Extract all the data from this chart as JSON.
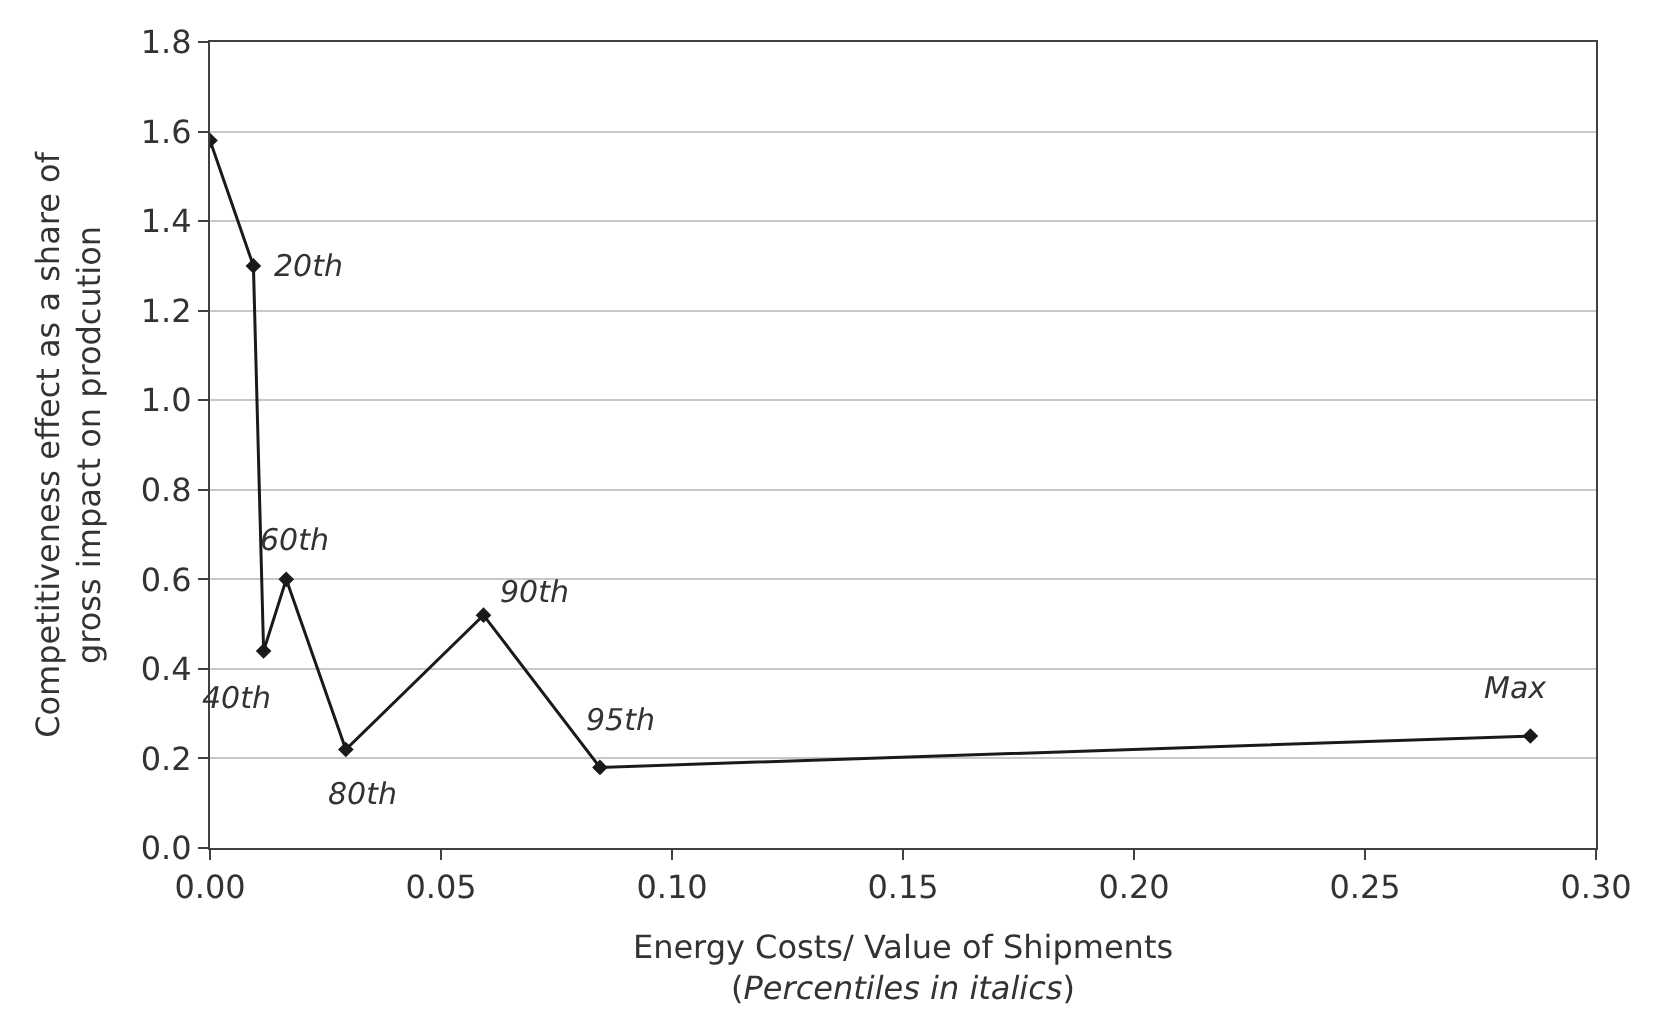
{
  "chart_data": {
    "type": "line",
    "xlabel": "Energy Costs/ Value of Shipments\n(Percentiles in italics)",
    "ylabel": "Competitiveness effect as a share of\ngross impact on prodcution",
    "x": [
      0.0,
      0.0094,
      0.0116,
      0.0165,
      0.0294,
      0.0592,
      0.0844,
      0.2858
    ],
    "series": [
      {
        "color": "#1a1a1a",
        "values": [
          1.58,
          1.3,
          0.44,
          0.6,
          0.22,
          0.52,
          0.18,
          0.25
        ]
      }
    ],
    "xlim": [
      0,
      0.3
    ],
    "xticks": [
      {
        "value": 0,
        "label": "0.00"
      },
      {
        "value": 0.05,
        "label": "0.05"
      },
      {
        "value": 0.1,
        "label": "0.10"
      },
      {
        "value": 0.15,
        "label": "0.15"
      },
      {
        "value": 0.2,
        "label": "0.20"
      },
      {
        "value": 0.25,
        "label": "0.25"
      },
      {
        "value": 0.3,
        "label": "0.30"
      }
    ],
    "ylim": [
      0,
      1.8
    ],
    "yticks": [
      {
        "value": 0,
        "label": "0.0"
      },
      {
        "value": 0.2,
        "label": "0.2"
      },
      {
        "value": 0.4,
        "label": "0.4"
      },
      {
        "value": 0.6,
        "label": "0.6"
      },
      {
        "value": 0.8,
        "label": "0.8"
      },
      {
        "value": 1.0,
        "label": "1.0"
      },
      {
        "value": 1.2,
        "label": "1.2"
      },
      {
        "value": 1.4,
        "label": "1.4"
      },
      {
        "value": 1.6,
        "label": "1.6"
      },
      {
        "value": 1.8,
        "label": "1.8"
      }
    ],
    "grid": "y",
    "marker": "diamond",
    "line_style": "solid",
    "annotations": [
      {
        "text": "20th",
        "x": 0.0094,
        "y": 1.3
      },
      {
        "text": "40th",
        "x": 0.0116,
        "y": 0.44
      },
      {
        "text": "60th",
        "x": 0.0165,
        "y": 0.6
      },
      {
        "text": "80th",
        "x": 0.0294,
        "y": 0.22
      },
      {
        "text": "90th",
        "x": 0.0592,
        "y": 0.52
      },
      {
        "text": "95th",
        "x": 0.0844,
        "y": 0.18
      },
      {
        "text": "Max",
        "x": 0.2858,
        "y": 0.25
      }
    ]
  }
}
